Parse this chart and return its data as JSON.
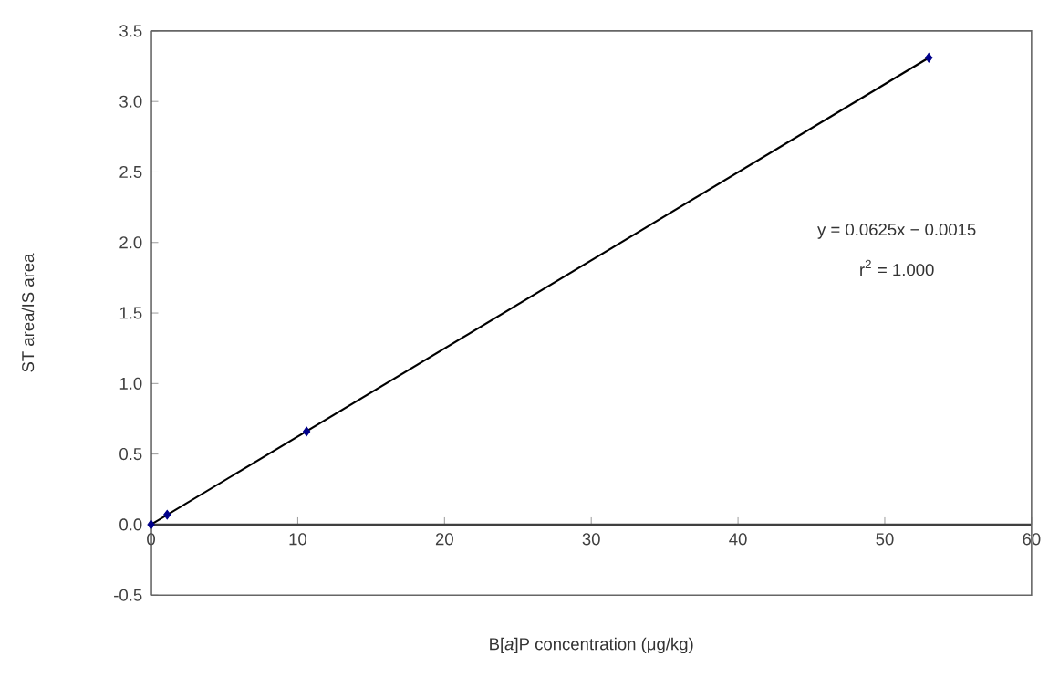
{
  "chart_data": {
    "type": "scatter",
    "xlabel": "B[*a*]P concentration (μg/kg)",
    "ylabel": "ST area/IS area",
    "annotations": [
      "y = 0.0625x − 0.0015",
      "r$^{2}$ = 1.000"
    ],
    "series": [
      {
        "color": "#00008b",
        "marker": "diamond",
        "x": [
          0,
          1.1,
          10.6,
          53
        ],
        "values": [
          0,
          0.07,
          0.66,
          3.31
        ]
      },
      {
        "type": "line",
        "color": "#000000",
        "marker": "none",
        "x": [
          0,
          53
        ],
        "values": [
          0,
          3.31
        ]
      }
    ],
    "xlim": [
      0,
      60
    ],
    "xticks": [
      0,
      10,
      20,
      30,
      40,
      50,
      60
    ],
    "ylim": [
      -0.5,
      3.5
    ],
    "yticks": [
      {
        "value": -0.5,
        "label": "-0.5"
      },
      {
        "value": 0,
        "label": "0.0"
      },
      {
        "value": 0.5,
        "label": "0.5"
      },
      {
        "value": 1,
        "label": "1.0"
      },
      {
        "value": 1.5,
        "label": "1.5"
      },
      {
        "value": 2,
        "label": "2.0"
      },
      {
        "value": 2.5,
        "label": "2.5"
      },
      {
        "value": 3,
        "label": "3.0"
      },
      {
        "value": 3.5,
        "label": "3.5"
      }
    ],
    "grid": false
  }
}
